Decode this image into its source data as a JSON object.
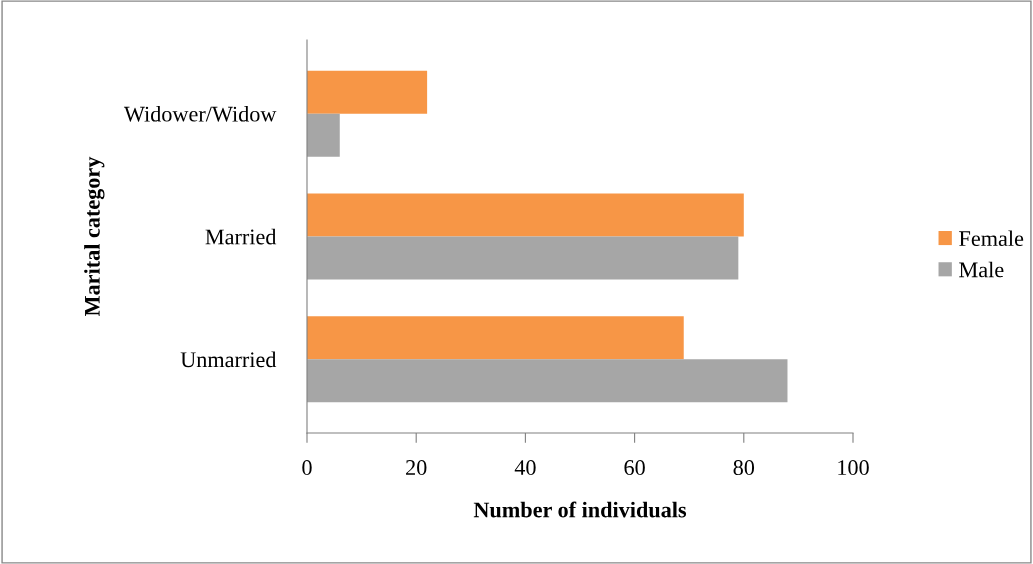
{
  "chart_data": {
    "type": "bar",
    "orientation": "horizontal",
    "categories": [
      "Widower/Widow",
      "Married",
      "Unmarried"
    ],
    "series": [
      {
        "name": "Female",
        "color": "#f79646",
        "values": [
          22,
          80,
          69
        ]
      },
      {
        "name": "Male",
        "color": "#a6a6a6",
        "values": [
          6,
          79,
          88
        ]
      }
    ],
    "xlabel": "Number of individuals",
    "ylabel": "Marital category",
    "xlim": [
      0,
      100
    ],
    "xticks": [
      0,
      20,
      40,
      60,
      80,
      100
    ],
    "grid": false,
    "legend": "right"
  }
}
